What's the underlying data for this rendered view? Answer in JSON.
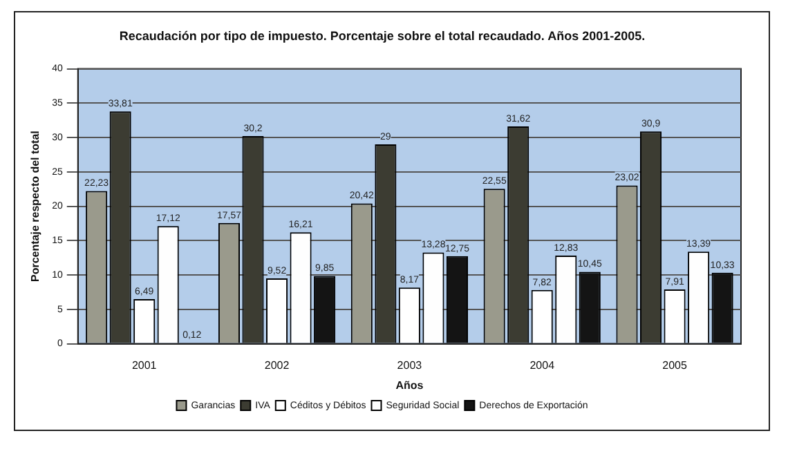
{
  "chart_data": {
    "type": "bar",
    "title": "Recaudación por tipo de impuesto. Porcentaje sobre el total recaudado. Años 2001-2005.",
    "xlabel": "Años",
    "ylabel": "Porcentaje respecto del total",
    "categories": [
      "2001",
      "2002",
      "2003",
      "2004",
      "2005"
    ],
    "series": [
      {
        "name": "Garancias",
        "color": "#9a9a8c",
        "values": [
          22.23,
          17.57,
          20.42,
          22.55,
          23.02
        ],
        "value_labels": [
          "22,23",
          "17,57",
          "20,42",
          "22,55",
          "23,02"
        ]
      },
      {
        "name": "IVA",
        "color": "#3c3c32",
        "values": [
          33.81,
          30.2,
          29,
          31.62,
          30.9
        ],
        "value_labels": [
          "33,81",
          "30,2",
          "29",
          "31,62",
          "30,9"
        ]
      },
      {
        "name": "Céditos y Débitos",
        "color": "#ffffff",
        "values": [
          6.49,
          9.52,
          8.17,
          7.82,
          7.91
        ],
        "value_labels": [
          "6,49",
          "9,52",
          "8,17",
          "7,82",
          "7,91"
        ]
      },
      {
        "name": "Seguridad Social",
        "color": "#fefefe",
        "values": [
          17.12,
          16.21,
          13.28,
          12.83,
          13.39
        ],
        "value_labels": [
          "17,12",
          "16,21",
          "13,28",
          "12,83",
          "13,39"
        ]
      },
      {
        "name": "Derechos de Exportación",
        "color": "#141414",
        "values": [
          0.12,
          9.85,
          12.75,
          10.45,
          10.33
        ],
        "value_labels": [
          "0,12",
          "9,85",
          "12,75",
          "10,45",
          "10,33"
        ]
      }
    ],
    "ylim": [
      0,
      40
    ],
    "yticks": [
      0,
      5,
      10,
      15,
      20,
      25,
      30,
      35,
      40
    ],
    "grid": "y",
    "legend": "bottom"
  }
}
